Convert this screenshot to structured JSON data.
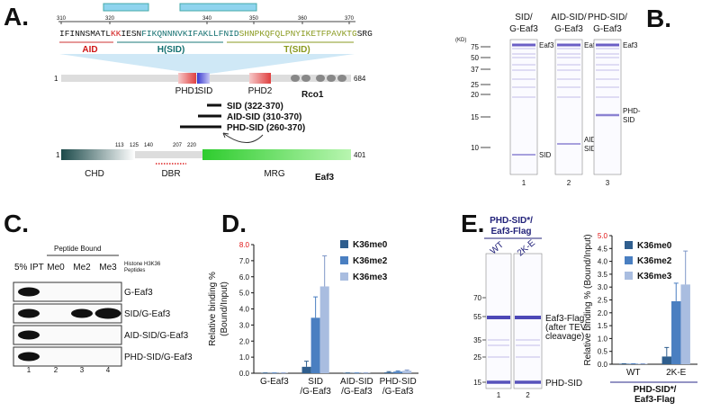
{
  "panel_a": {
    "label": "A.",
    "ruler_ticks": [
      310,
      320,
      340,
      350,
      360,
      370
    ],
    "sequence": [
      "IFINNSMATL",
      "KK",
      "IESN",
      "FIKQNNNVKIFAKLLFNID",
      "SHNPKQFQLPNYIKETFPAVKTG",
      "SRG"
    ],
    "regions": [
      "AID",
      "H(SID)",
      "T(SID)"
    ],
    "rco1": {
      "start": 1,
      "end": 684,
      "domains": [
        "PHD1",
        "SID",
        "PHD2"
      ],
      "name": "Rco1"
    },
    "constructs": [
      "SID (322-370)",
      "AID-SID (310-370)",
      "PHD-SID (260-370)"
    ],
    "eaf3": {
      "positions": [
        1,
        113,
        125,
        140,
        207,
        220,
        401
      ],
      "domains": [
        "CHD",
        "DBR",
        "MRG"
      ],
      "name": "Eaf3"
    }
  },
  "panel_b": {
    "label": "B.",
    "lanes": [
      [
        "SID/",
        "G-Eaf3"
      ],
      [
        "AID-SID/",
        "G-Eaf3"
      ],
      [
        "PHD-SID/",
        "G-Eaf3"
      ]
    ],
    "unit": "(KD)",
    "markers": [
      75,
      50,
      37,
      25,
      20,
      15,
      10
    ],
    "band_labels": [
      [
        "Eaf3",
        "SID"
      ],
      [
        "Eaf3",
        "AID-",
        "SID"
      ],
      [
        "Eaf3",
        "PHD-",
        "SID"
      ]
    ],
    "lane_numbers": [
      1,
      2,
      3
    ]
  },
  "panel_c": {
    "label": "C.",
    "input": "5% IPT",
    "bound": "Peptide Bound",
    "peptides": [
      "Me0",
      "Me2",
      "Me3"
    ],
    "peptide_note": [
      "Histone H3K36",
      "Peptides"
    ],
    "rows": [
      "G-Eaf3",
      "SID/G-Eaf3",
      "AID-SID/G-Eaf3",
      "PHD-SID/G-Eaf3"
    ],
    "lane_numbers": [
      1,
      2,
      3,
      4
    ]
  },
  "panel_d": {
    "label": "D.",
    "chart_data": {
      "type": "bar",
      "ylabel": [
        "Relative binding %",
        "(Bound/Input)"
      ],
      "categories": [
        [
          "G-Eaf3"
        ],
        [
          "SID",
          "/G-Eaf3"
        ],
        [
          "AID-SID",
          "/G-Eaf3"
        ],
        [
          "PHD-SID",
          "/G-Eaf3"
        ]
      ],
      "series": [
        {
          "name": "K36me0",
          "color": "#2f5e8e",
          "values": [
            0.02,
            0.4,
            0.02,
            0.05
          ],
          "errors": [
            0,
            0.35,
            0,
            0.05
          ]
        },
        {
          "name": "K36me2",
          "color": "#4a7fc1",
          "values": [
            0.02,
            3.45,
            0.02,
            0.1
          ],
          "errors": [
            0,
            1.3,
            0,
            0.05
          ]
        },
        {
          "name": "K36me3",
          "color": "#a9bde0",
          "values": [
            0.02,
            5.4,
            0.02,
            0.15
          ],
          "errors": [
            0,
            1.9,
            0,
            0.05
          ]
        }
      ],
      "ylim": [
        0,
        8
      ],
      "yticks": [
        {
          "value": 0,
          "label": "0.0"
        },
        {
          "value": 1,
          "label": "1.0"
        },
        {
          "value": 2,
          "label": "2.0"
        },
        {
          "value": 3,
          "label": "3.0"
        },
        {
          "value": 4,
          "label": "4.0"
        },
        {
          "value": 5,
          "label": "5.0"
        },
        {
          "value": 6,
          "label": "6.0"
        },
        {
          "value": 7,
          "label": "7.0"
        },
        {
          "value": 8,
          "label": "8.0"
        }
      ]
    }
  },
  "panel_e": {
    "label": "E.",
    "gel": {
      "title": [
        "PHD-SID*/",
        "Eaf3-Flag"
      ],
      "lanes": [
        "WT",
        "2K-E"
      ],
      "markers": [
        70,
        55,
        35,
        25,
        15
      ],
      "band_label": [
        "Eaf3-Flag",
        "(after TEV",
        "cleavage)"
      ],
      "product_label": "PHD-SID",
      "lane_numbers": [
        1,
        2
      ]
    },
    "chart_data": {
      "type": "bar",
      "ylabel": [
        "Relative binding % (Bound/Input)"
      ],
      "xlabel": [
        "PHD-SID*/",
        "Eaf3-Flag"
      ],
      "categories": [
        [
          "WT"
        ],
        [
          "2K-E"
        ]
      ],
      "series": [
        {
          "name": "K36me0",
          "color": "#2f5e8e",
          "values": [
            0.02,
            0.3
          ],
          "errors": [
            0,
            0.35
          ]
        },
        {
          "name": "K36me2",
          "color": "#4a7fc1",
          "values": [
            0.02,
            2.45
          ],
          "errors": [
            0,
            0.7
          ]
        },
        {
          "name": "K36me3",
          "color": "#a9bde0",
          "values": [
            0.02,
            3.1
          ],
          "errors": [
            0,
            1.3
          ]
        }
      ],
      "ylim": [
        0,
        5
      ],
      "yticks": [
        {
          "value": 0,
          "label": "0.0"
        },
        {
          "value": 0.5,
          "label": "0.5"
        },
        {
          "value": 1,
          "label": "1.0"
        },
        {
          "value": 1.5,
          "label": "1.5"
        },
        {
          "value": 2,
          "label": "2.0"
        },
        {
          "value": 2.5,
          "label": "2.5"
        },
        {
          "value": 3,
          "label": "3.0"
        },
        {
          "value": 3.5,
          "label": "3.5"
        },
        {
          "value": 4,
          "label": "4.0"
        },
        {
          "value": 4.5,
          "label": "4.5"
        },
        {
          "value": 5,
          "label": "5.0"
        }
      ]
    }
  }
}
